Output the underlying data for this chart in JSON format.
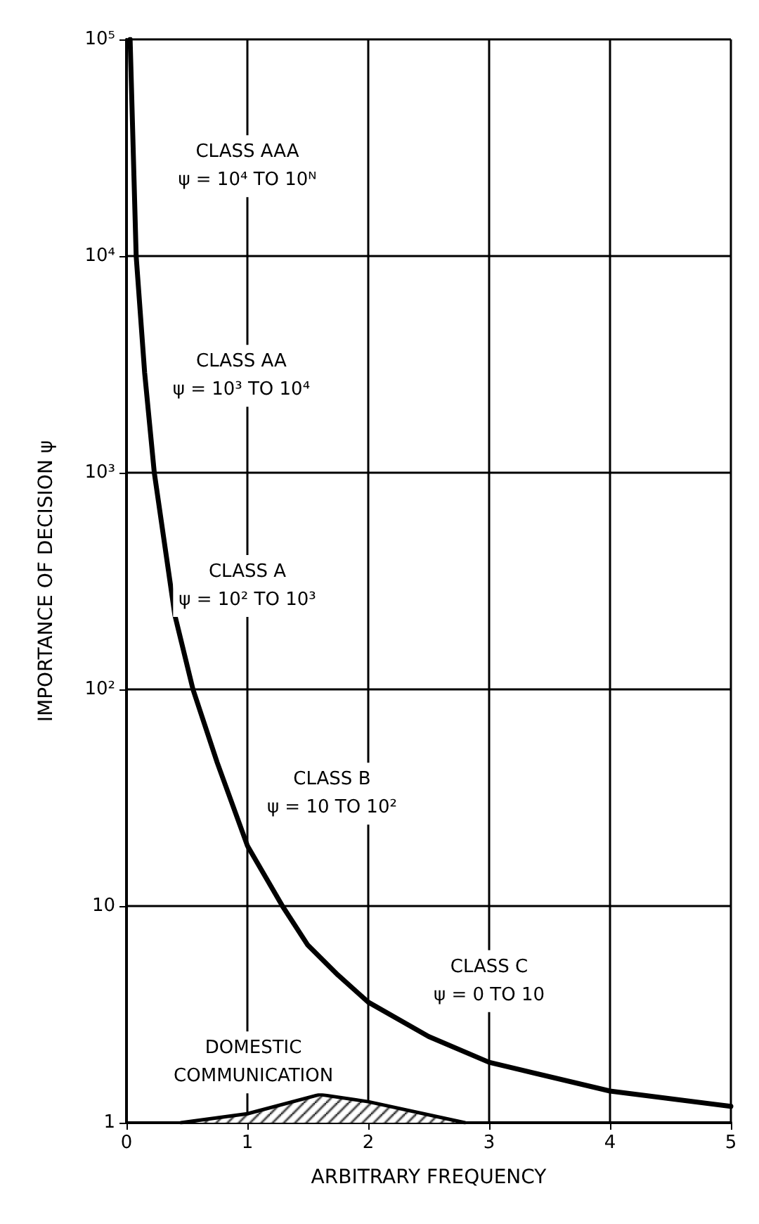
{
  "chart_data": {
    "type": "line",
    "xlabel": "ARBITRARY FREQUENCY",
    "ylabel": "IMPORTANCE OF DECISION ψ",
    "xlim": [
      0,
      5
    ],
    "xticks": [
      0,
      1,
      2,
      3,
      4,
      5
    ],
    "ylim": [
      1,
      100000
    ],
    "yticks": [
      {
        "value": 1,
        "label": "1"
      },
      {
        "value": 10,
        "label": "10"
      },
      {
        "value": 100,
        "label": "10²"
      },
      {
        "value": 1000,
        "label": "10³"
      },
      {
        "value": 10000,
        "label": "10⁴"
      },
      {
        "value": 100000,
        "label": "10⁵"
      }
    ],
    "log": "y",
    "grid": true,
    "marker": "none",
    "line_style": "solid",
    "series": [
      {
        "color": "#000000",
        "x": [
          0.03,
          0.08,
          0.15,
          0.23,
          0.4,
          0.55,
          0.75,
          1.0,
          1.29,
          1.5,
          1.75,
          2.0,
          2.5,
          3.0,
          4.0,
          5.0
        ],
        "values": [
          100000,
          10000,
          2900,
          1000,
          220,
          100,
          46,
          19,
          10,
          6.6,
          4.8,
          3.6,
          2.5,
          1.9,
          1.4,
          1.19
        ]
      },
      {
        "type": "area",
        "color": "#000000",
        "x": [
          0.45,
          1.0,
          1.6,
          2.0,
          2.8
        ],
        "values": [
          1,
          1.1,
          1.35,
          1.25,
          1
        ]
      }
    ],
    "annotations": [
      "CLASS AAA\nψ = 10⁴ TO 10ᴺ",
      "CLASS AA\nψ = 10³ TO 10⁴",
      "CLASS A\nψ = 10² TO 10³",
      "CLASS B\nψ = 10 TO 10²",
      "CLASS C\nψ = 0 TO 10",
      "DOMESTIC\nCOMMUNICATION"
    ]
  }
}
